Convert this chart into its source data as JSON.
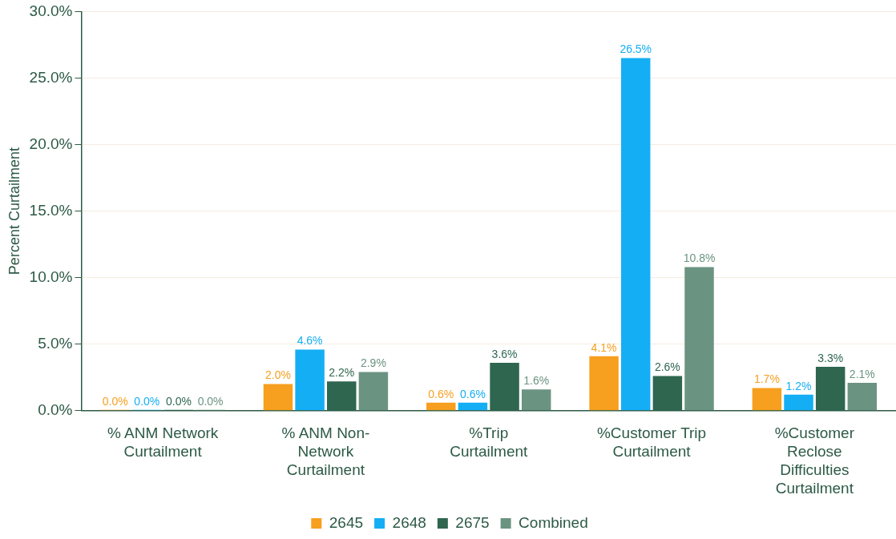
{
  "chart_data": {
    "type": "bar",
    "ylabel": "Percent Curtailment",
    "categories": [
      "% ANM Network Curtailment",
      "% ANM Non-Network Curtailment",
      "%Trip Curtailment",
      "%Customer Trip Curtailment",
      "%Customer Reclose Difficulties Curtailment"
    ],
    "series": [
      {
        "name": "2645",
        "color": "#f79f1f",
        "values": [
          0.0,
          2.0,
          0.6,
          4.1,
          1.7
        ],
        "value_labels": [
          "0.0%",
          "2.0%",
          "0.6%",
          "4.1%",
          "1.7%"
        ]
      },
      {
        "name": "2648",
        "color": "#14aef5",
        "values": [
          0.0,
          4.6,
          0.6,
          26.5,
          1.2
        ],
        "value_labels": [
          "0.0%",
          "4.6%",
          "0.6%",
          "26.5%",
          "1.2%"
        ]
      },
      {
        "name": "2675",
        "color": "#2e6650",
        "values": [
          0.0,
          2.2,
          3.6,
          2.6,
          3.3
        ],
        "value_labels": [
          "0.0%",
          "2.2%",
          "3.6%",
          "2.6%",
          "3.3%"
        ]
      },
      {
        "name": "Combined",
        "color": "#6b9381",
        "values": [
          0.0,
          2.9,
          1.6,
          10.8,
          2.1
        ],
        "value_labels": [
          "0.0%",
          "2.9%",
          "1.6%",
          "10.8%",
          "2.1%"
        ]
      }
    ],
    "ylim": [
      0,
      30
    ],
    "yticks": [
      {
        "value": 0,
        "label": "0.0%"
      },
      {
        "value": 5,
        "label": "5.0%"
      },
      {
        "value": 10,
        "label": "10.0%"
      },
      {
        "value": 15,
        "label": "15.0%"
      },
      {
        "value": 20,
        "label": "20.0%"
      },
      {
        "value": 25,
        "label": "25.0%"
      },
      {
        "value": 30,
        "label": "30.0%"
      }
    ],
    "grid": "y",
    "legend": "bottom"
  }
}
